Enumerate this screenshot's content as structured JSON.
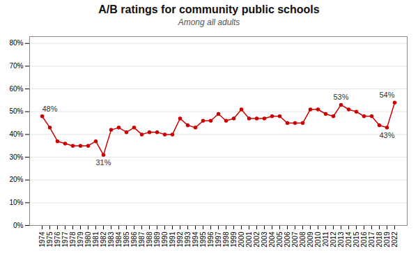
{
  "chart_data": {
    "type": "line",
    "title": "A/B ratings for community public schools",
    "subtitle": "Among all adults",
    "categories": [
      "1974",
      "1975",
      "1976",
      "1977",
      "1978",
      "1979",
      "1980",
      "1981",
      "1982",
      "1983",
      "1984",
      "1985",
      "1986",
      "1987",
      "1988",
      "1989",
      "1990",
      "1991",
      "1992",
      "1993",
      "1994",
      "1995",
      "1996",
      "1997",
      "1998",
      "1999",
      "2000",
      "2001",
      "2002",
      "2003",
      "2004",
      "2005",
      "2006",
      "2007",
      "2008",
      "2009",
      "2010",
      "2011",
      "2012",
      "2013",
      "2014",
      "2015",
      "2016",
      "2017",
      "2018",
      "2019",
      "2022"
    ],
    "values": [
      48,
      43,
      37,
      36,
      35,
      35,
      35,
      37,
      31,
      42,
      43,
      41,
      43,
      40,
      41,
      41,
      40,
      40,
      47,
      44,
      43,
      46,
      46,
      49,
      46,
      47,
      51,
      47,
      47,
      47,
      48,
      48,
      45,
      45,
      45,
      51,
      51,
      49,
      48,
      53,
      51,
      50,
      48,
      48,
      44,
      43,
      54
    ],
    "color": "#cc0000",
    "marker": "circle",
    "ylim": [
      0,
      83
    ],
    "yticks": [
      {
        "value": 0,
        "label": "0%"
      },
      {
        "value": 10,
        "label": "10%"
      },
      {
        "value": 20,
        "label": "20%"
      },
      {
        "value": 30,
        "label": "30%"
      },
      {
        "value": 40,
        "label": "40%"
      },
      {
        "value": 50,
        "label": "50%"
      },
      {
        "value": 60,
        "label": "60%"
      },
      {
        "value": 70,
        "label": "70%"
      },
      {
        "value": 80,
        "label": "80%"
      }
    ],
    "grid": true,
    "annotations": [
      {
        "x": "1974",
        "y": 48,
        "text": "48%"
      },
      {
        "x": "1982",
        "y": 31,
        "text": "31%"
      },
      {
        "x": "2013",
        "y": 53,
        "text": "53%"
      },
      {
        "x": "2019",
        "y": 43,
        "text": "43%"
      },
      {
        "x": "2022",
        "y": 54,
        "text": "54%"
      }
    ]
  }
}
